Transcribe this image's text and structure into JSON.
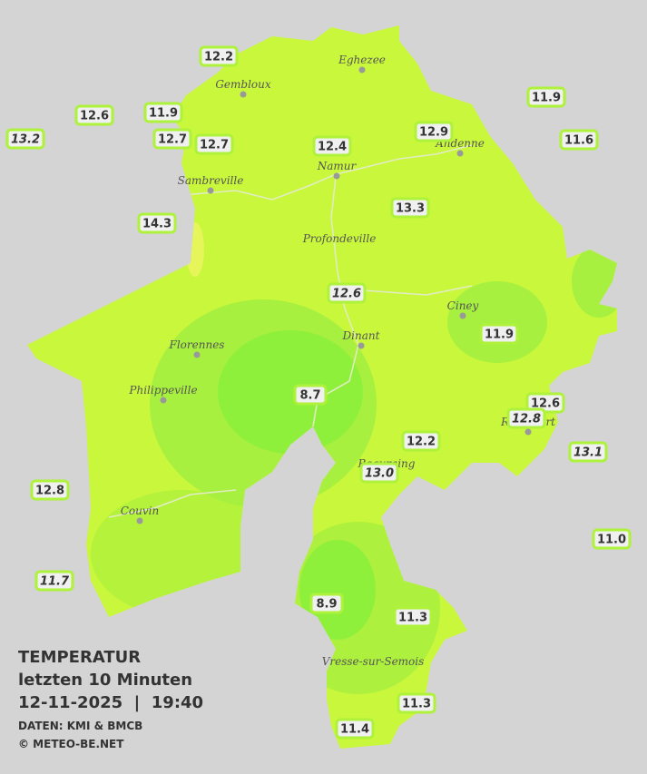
{
  "legend": {
    "title": "TEMPERATUR",
    "subtitle": "letzten 10 Minuten",
    "datetime": "12-11-2025  |  19:40",
    "source": "DATEN: KMI & BMCB",
    "copyright": "© METEO-BE.NET"
  },
  "cities": [
    {
      "name": "Eghezee"
    },
    {
      "name": "Gembloux"
    },
    {
      "name": "Andenne"
    },
    {
      "name": "Namur"
    },
    {
      "name": "Sambreville"
    },
    {
      "name": "Profondeville"
    },
    {
      "name": "Ciney"
    },
    {
      "name": "Dinant"
    },
    {
      "name": "Florennes"
    },
    {
      "name": "Philippeville"
    },
    {
      "name": "Rochefort"
    },
    {
      "name": "Beauraing"
    },
    {
      "name": "Couvin"
    },
    {
      "name": "Vresse-sur-Semois"
    }
  ],
  "stations": [
    {
      "label": "12.2"
    },
    {
      "label": "12.6"
    },
    {
      "label": "11.9"
    },
    {
      "label": "13.2",
      "style": "italic"
    },
    {
      "label": "12.7"
    },
    {
      "label": "12.7"
    },
    {
      "label": "12.4"
    },
    {
      "label": "12.9"
    },
    {
      "label": "11.9"
    },
    {
      "label": "11.6"
    },
    {
      "label": "14.3"
    },
    {
      "label": "13.3"
    },
    {
      "label": "12.6",
      "style": "italic"
    },
    {
      "label": "11.9"
    },
    {
      "label": "8.7"
    },
    {
      "label": "12.6"
    },
    {
      "label": "12.8",
      "style": "italic"
    },
    {
      "label": "12.2"
    },
    {
      "label": "13.1",
      "style": "italic"
    },
    {
      "label": "13.0",
      "style": "italic"
    },
    {
      "label": "12.8"
    },
    {
      "label": "11.0"
    },
    {
      "label": "11.7",
      "style": "italic"
    },
    {
      "label": "8.9"
    },
    {
      "label": "11.3"
    },
    {
      "label": "11.3"
    },
    {
      "label": "11.4"
    }
  ]
}
